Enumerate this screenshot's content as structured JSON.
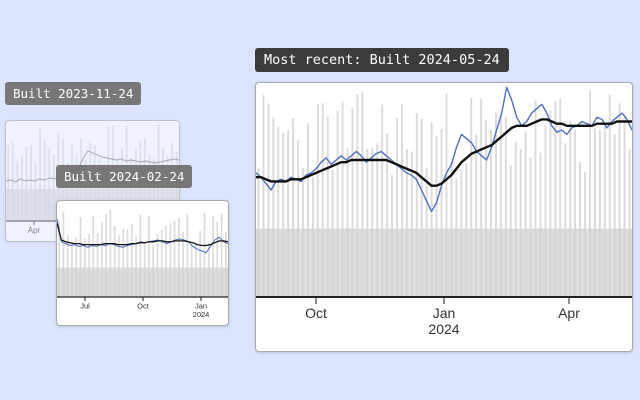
{
  "labels": {
    "oldest": "Built 2023-11-24",
    "middle": "Built 2024-02-24",
    "recent": "Most recent: Built 2024-05-24"
  },
  "colors": {
    "background": "#dde5fe",
    "bars": "#d0d0d0",
    "raw_line": "#4f6fc0",
    "avg_line": "#111111"
  },
  "chart_data": [
    {
      "type": "line",
      "build": "2023-11-24",
      "x_tick_labels": [
        "Apr"
      ],
      "series": [
        {
          "values": [
            0.4,
            0.41,
            0.39,
            0.42,
            0.4,
            0.41,
            0.4,
            0.42,
            0.41,
            0.43,
            0.42,
            0.44,
            0.45,
            0.47,
            0.49,
            0.52,
            0.62,
            0.7,
            0.68,
            0.66,
            0.64,
            0.63,
            0.62,
            0.61,
            0.62,
            0.6,
            0.61,
            0.6,
            0.59,
            0.6,
            0.59,
            0.58,
            0.59,
            0.6,
            0.61,
            0.62,
            0.61
          ]
        }
      ]
    },
    {
      "type": "line",
      "build": "2024-02-24",
      "x_tick_labels": [
        "Jul",
        "Oct",
        "Jan",
        "2024"
      ],
      "series": [
        {
          "values": [
            0.85,
            0.6,
            0.58,
            0.56,
            0.57,
            0.55,
            0.56,
            0.54,
            0.56,
            0.55,
            0.57,
            0.56,
            0.58,
            0.57,
            0.55,
            0.54,
            0.56,
            0.57,
            0.58,
            0.6,
            0.59,
            0.6,
            0.61,
            0.62,
            0.6,
            0.58,
            0.6,
            0.62,
            0.63,
            0.62,
            0.6,
            0.55,
            0.52,
            0.5,
            0.48,
            0.55,
            0.62,
            0.65,
            0.6,
            0.58
          ]
        },
        {
          "values": [
            0.8,
            0.62,
            0.6,
            0.59,
            0.58,
            0.58,
            0.57,
            0.57,
            0.57,
            0.57,
            0.57,
            0.58,
            0.58,
            0.58,
            0.57,
            0.57,
            0.57,
            0.58,
            0.58,
            0.59,
            0.59,
            0.6,
            0.6,
            0.61,
            0.61,
            0.6,
            0.6,
            0.61,
            0.61,
            0.61,
            0.6,
            0.59,
            0.57,
            0.56,
            0.56,
            0.57,
            0.59,
            0.61,
            0.61,
            0.6
          ]
        }
      ]
    },
    {
      "type": "line",
      "build": "2024-05-24",
      "x_tick_labels": [
        "Oct",
        "Jan",
        "2024",
        "Apr"
      ],
      "series": [
        {
          "values": [
            0.58,
            0.56,
            0.53,
            0.5,
            0.54,
            0.55,
            0.54,
            0.56,
            0.55,
            0.54,
            0.57,
            0.58,
            0.6,
            0.63,
            0.65,
            0.62,
            0.64,
            0.66,
            0.64,
            0.66,
            0.68,
            0.66,
            0.63,
            0.65,
            0.67,
            0.68,
            0.66,
            0.64,
            0.62,
            0.6,
            0.58,
            0.57,
            0.55,
            0.5,
            0.45,
            0.4,
            0.44,
            0.52,
            0.58,
            0.62,
            0.7,
            0.76,
            0.74,
            0.72,
            0.68,
            0.66,
            0.64,
            0.7,
            0.78,
            0.86,
            0.98,
            0.92,
            0.84,
            0.8,
            0.82,
            0.86,
            0.88,
            0.9,
            0.86,
            0.8,
            0.77,
            0.78,
            0.76,
            0.79,
            0.8,
            0.82,
            0.81,
            0.8,
            0.84,
            0.83,
            0.79,
            0.82,
            0.84,
            0.86,
            0.83,
            0.78
          ]
        },
        {
          "values": [
            0.56,
            0.56,
            0.55,
            0.54,
            0.54,
            0.54,
            0.54,
            0.55,
            0.55,
            0.55,
            0.56,
            0.57,
            0.58,
            0.59,
            0.6,
            0.61,
            0.62,
            0.63,
            0.63,
            0.64,
            0.64,
            0.64,
            0.64,
            0.64,
            0.64,
            0.64,
            0.64,
            0.63,
            0.62,
            0.61,
            0.6,
            0.59,
            0.58,
            0.56,
            0.54,
            0.52,
            0.52,
            0.53,
            0.55,
            0.57,
            0.6,
            0.63,
            0.65,
            0.67,
            0.68,
            0.69,
            0.7,
            0.71,
            0.73,
            0.75,
            0.77,
            0.79,
            0.8,
            0.8,
            0.8,
            0.81,
            0.82,
            0.83,
            0.83,
            0.82,
            0.81,
            0.81,
            0.8,
            0.8,
            0.8,
            0.8,
            0.8,
            0.8,
            0.81,
            0.81,
            0.81,
            0.81,
            0.82,
            0.82,
            0.82,
            0.82
          ]
        }
      ]
    }
  ]
}
